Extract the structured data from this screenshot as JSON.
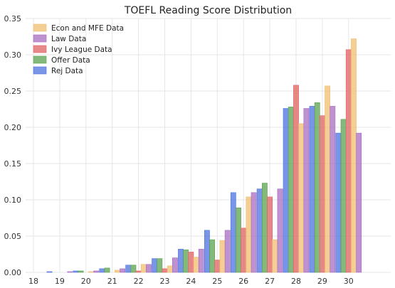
{
  "chart_data": {
    "type": "bar",
    "title": "TOEFL Reading Score Distribution",
    "xlabel": "",
    "ylabel": "",
    "categories": [
      "18",
      "19",
      "20",
      "21",
      "22",
      "23",
      "24",
      "25",
      "26",
      "27",
      "28",
      "29",
      "30"
    ],
    "ylim": [
      0,
      0.35
    ],
    "yticks": [
      "0.00",
      "0.05",
      "0.10",
      "0.15",
      "0.20",
      "0.25",
      "0.30",
      "0.35"
    ],
    "grid": true,
    "legend_position": "top-left",
    "series": [
      {
        "name": "Rej Data",
        "color": "#4c72e0",
        "values": [
          0,
          0.001,
          0.002,
          0.005,
          0.01,
          0.019,
          0.032,
          0.058,
          0.11,
          0.115,
          0.226,
          0.229,
          0.192
        ]
      },
      {
        "name": "Offer Data",
        "color": "#5aa24f",
        "values": [
          0,
          0,
          0.002,
          0.006,
          0.01,
          0.019,
          0.031,
          0.045,
          0.089,
          0.123,
          0.228,
          0.234,
          0.211
        ]
      },
      {
        "name": "Ivy League Data",
        "color": "#e06262",
        "values": [
          0,
          0,
          0,
          0,
          0.002,
          0.005,
          0.028,
          0.017,
          0.061,
          0.104,
          0.258,
          0.216,
          0.307
        ]
      },
      {
        "name": "Econ and MFE Data",
        "color": "#f0be6e",
        "values": [
          0,
          0,
          0.001,
          0.003,
          0.011,
          0.009,
          0.021,
          0.044,
          0.104,
          0.045,
          0.205,
          0.257,
          0.322
        ]
      },
      {
        "name": "Law Data",
        "color": "#a86cc1",
        "values": [
          0,
          0.001,
          0.002,
          0.005,
          0.011,
          0.02,
          0.032,
          0.058,
          0.11,
          0.115,
          0.226,
          0.229,
          0.192
        ]
      }
    ],
    "legend_order": [
      "Econ and MFE Data",
      "Law Data",
      "Ivy League Data",
      "Offer Data",
      "Rej Data"
    ]
  }
}
